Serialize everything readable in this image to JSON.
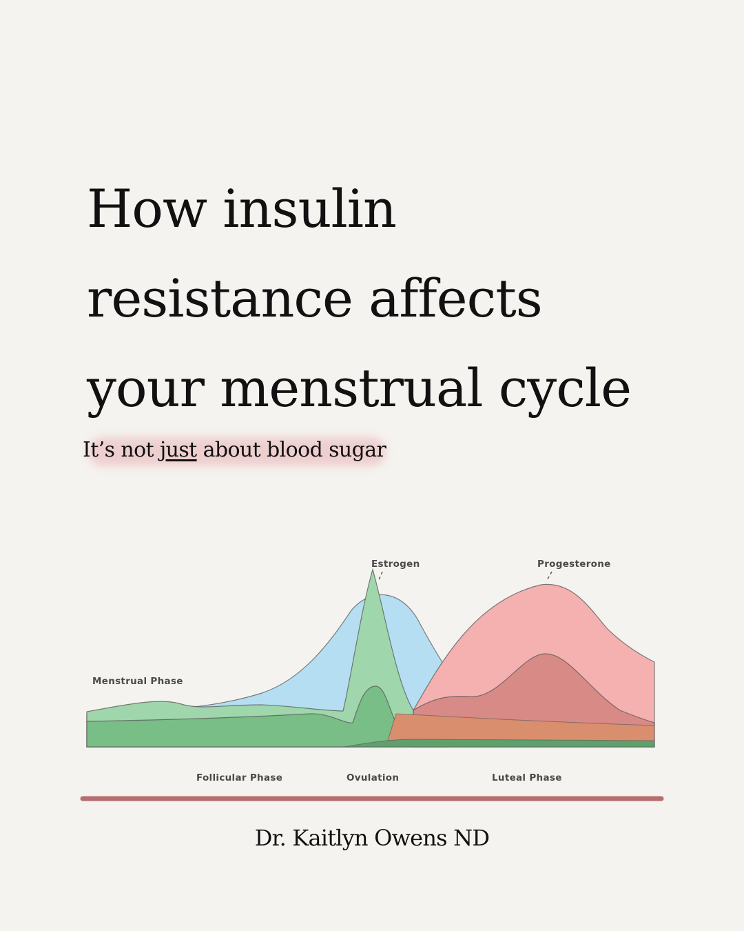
{
  "title": {
    "line1": "How insulin",
    "line2": "resistance affects",
    "line3": "your menstrual cycle"
  },
  "subtitle": {
    "before": "It’s not ",
    "emphasis": "just",
    "after": " about blood sugar"
  },
  "diagram": {
    "labels": {
      "estrogen": "Estrogen",
      "progesterone": "Progesterone",
      "menstrual_phase": "Menstrual Phase",
      "follicular_phase": "Follicular Phase",
      "ovulation": "Ovulation",
      "luteal_phase": "Luteal Phase"
    },
    "colors": {
      "estrogen": "#b5def2",
      "progesterone": "#f5b0b0",
      "lh": "#9fd6ab",
      "fsh": "#79bd87",
      "base": "#6aae78",
      "lh_tip": "#f2d27a",
      "timeline": "#b56d6d"
    }
  },
  "author": "Dr. Kaitlyn Owens ND"
}
